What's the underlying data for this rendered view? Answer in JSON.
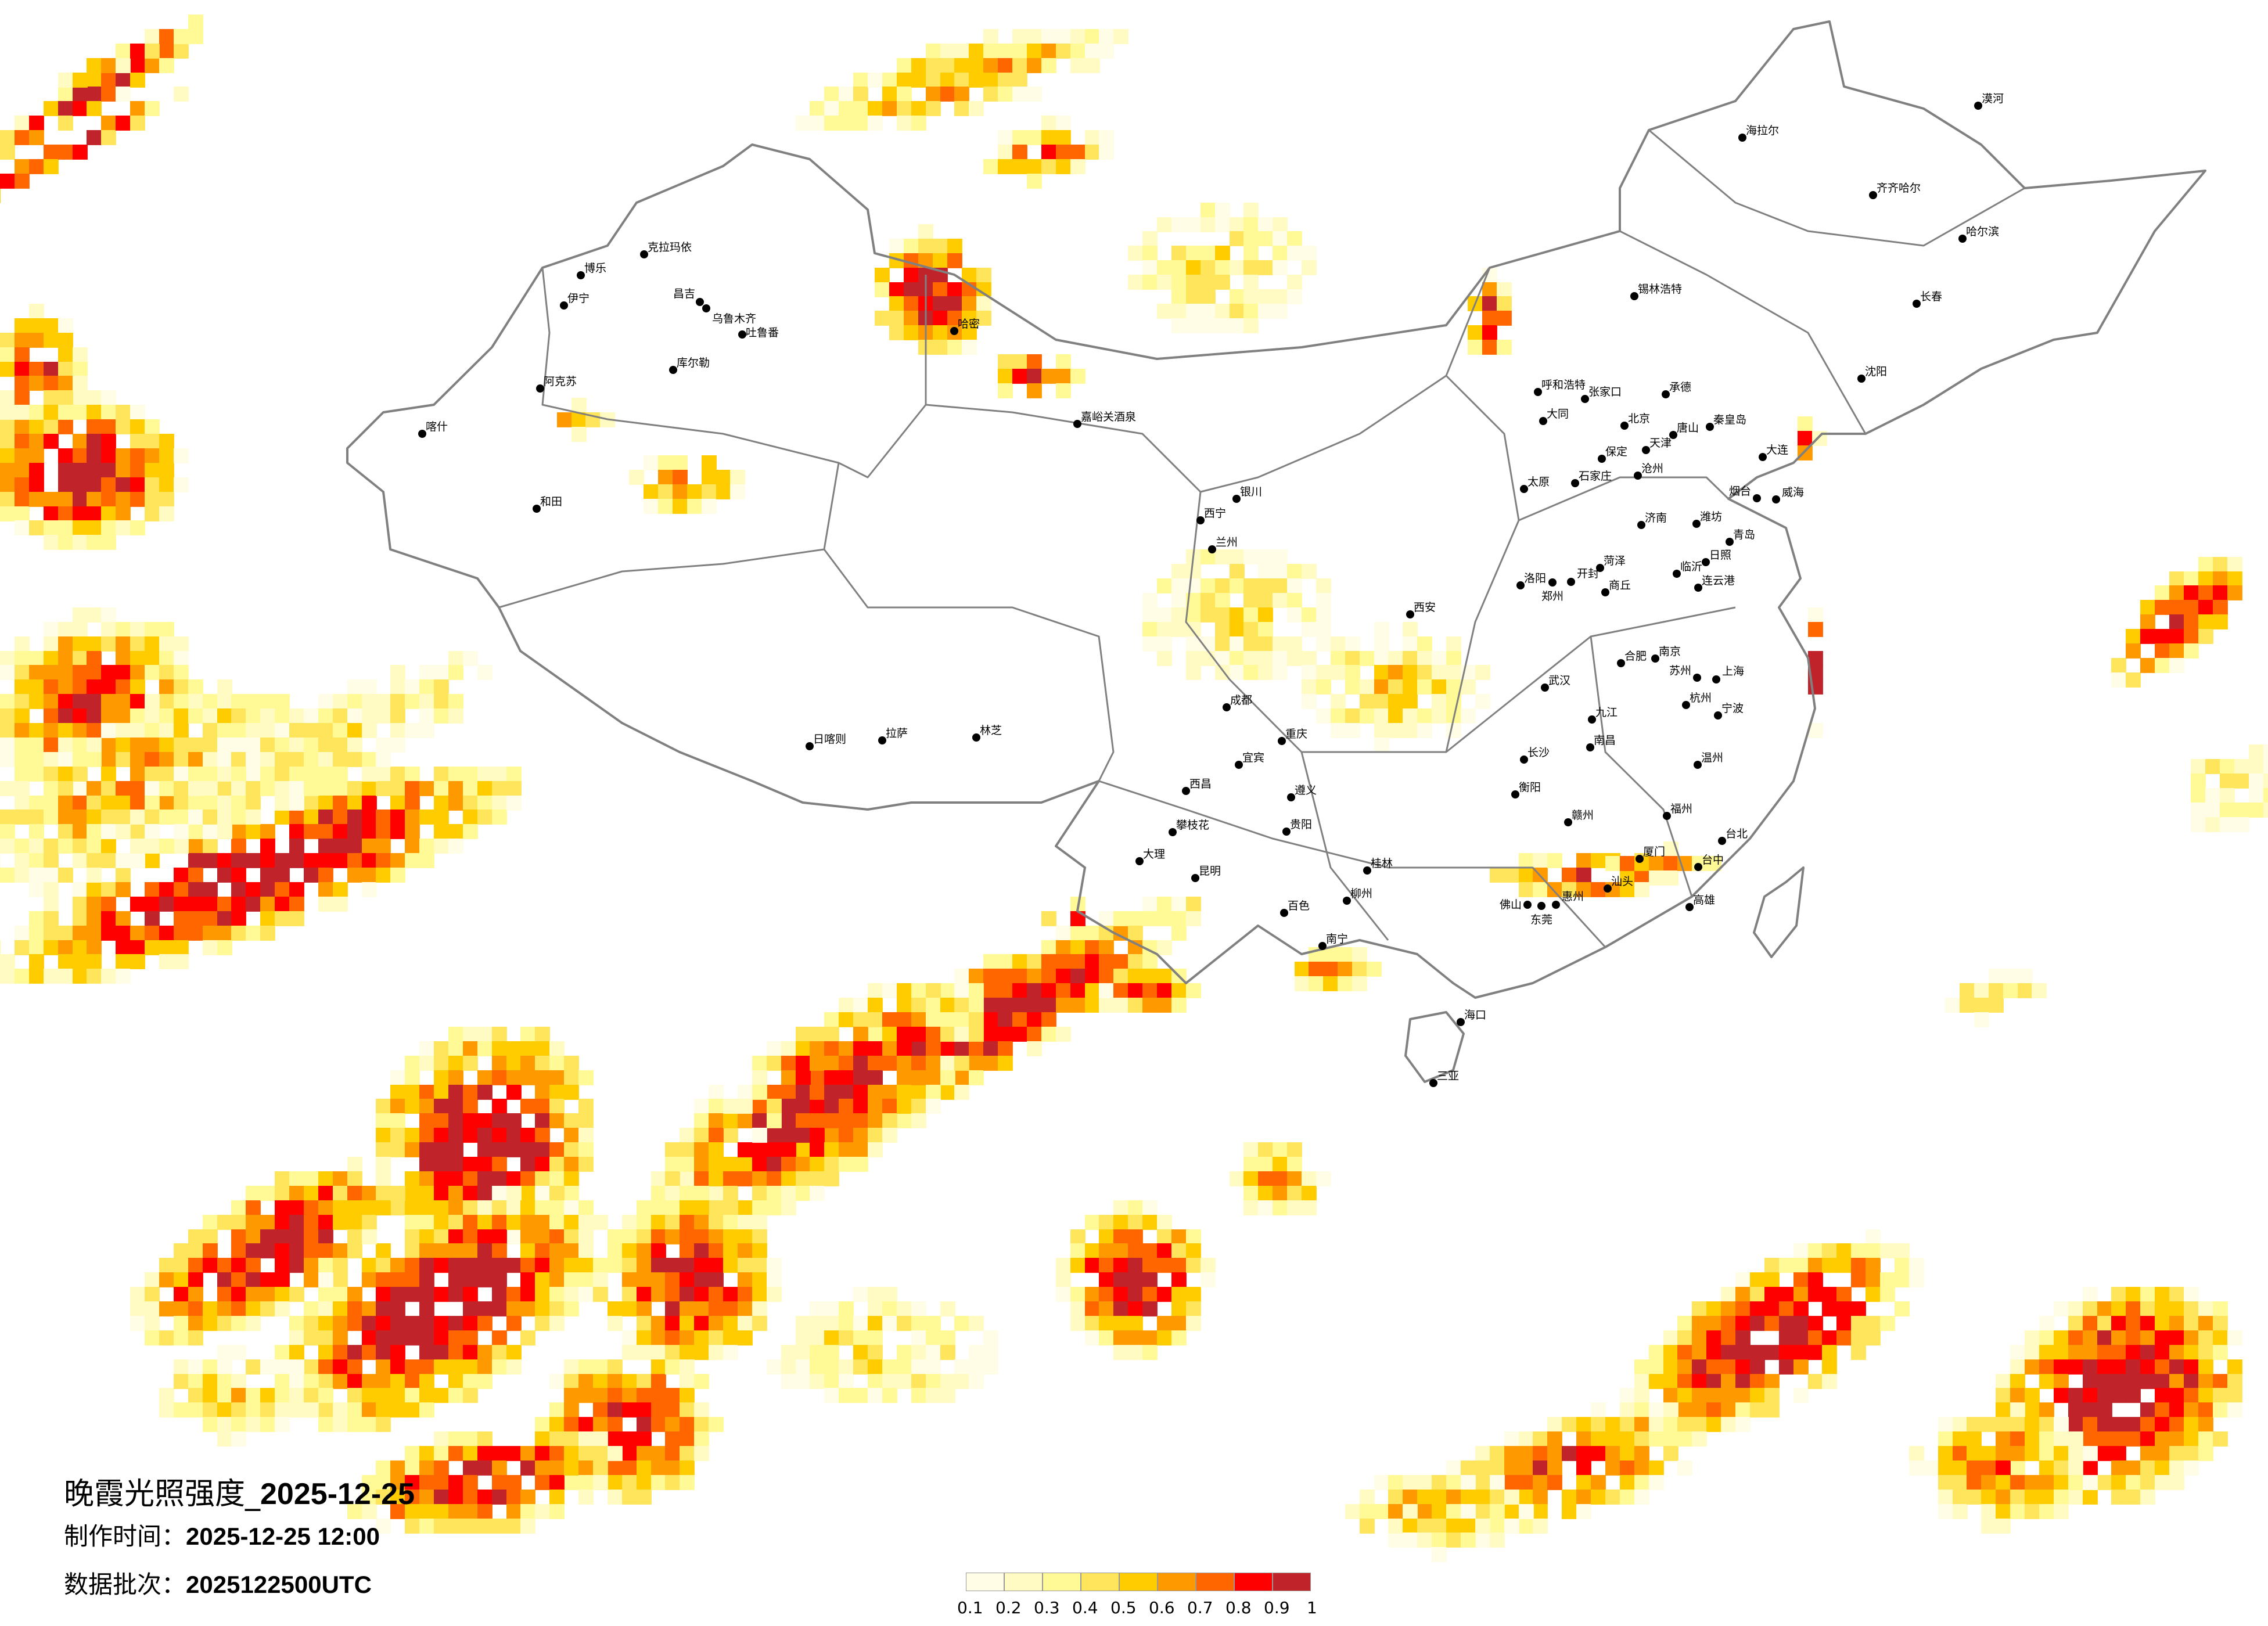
{
  "title": {
    "prefix": "晚霞光照强度_",
    "date": "2025-12-25"
  },
  "production_time": {
    "label": "制作时间：",
    "value": "2025-12-25 12:00"
  },
  "data_batch": {
    "label": "数据批次：",
    "value": "2025122500UTC"
  },
  "legend": {
    "colors": [
      "#fffde6",
      "#fffbc2",
      "#fffa96",
      "#ffe55c",
      "#ffcc00",
      "#ff9900",
      "#ff6600",
      "#ff0000",
      "#c0232a"
    ],
    "labels": [
      "0.1",
      "0.2",
      "0.3",
      "0.4",
      "0.5",
      "0.6",
      "0.7",
      "0.8",
      "0.9",
      "1"
    ]
  },
  "colors": {
    "boundary": "#808080",
    "city_dot": "#000000",
    "background": "#ffffff"
  },
  "cities": [
    "北京",
    "天津",
    "石家庄",
    "太原",
    "济南",
    "青岛",
    "大连",
    "郑州",
    "洛阳",
    "唐山",
    "保定",
    "烟台",
    "威海",
    "秦皇岛",
    "大同",
    "张家口",
    "呼和浩特",
    "承德",
    "沧州",
    "潍坊",
    "临沂",
    "日照",
    "连云港",
    "商丘",
    "开封",
    "菏泽",
    "克拉玛依",
    "博乐",
    "伊宁",
    "昌吉",
    "乌鲁木齐",
    "吐鲁番",
    "库尔勒",
    "阿克苏",
    "喀什",
    "和田",
    "哈密",
    "嘉峪关酒泉",
    "西宁",
    "兰州",
    "银川",
    "西安",
    "拉萨",
    "日喀则",
    "林芝",
    "成都",
    "重庆",
    "昆明",
    "贵阳",
    "南宁",
    "桂林",
    "柳州",
    "大理",
    "西昌",
    "遵义",
    "宜宾",
    "攀枝花",
    "百色",
    "武汉",
    "长沙",
    "南昌",
    "杭州",
    "上海",
    "南京",
    "合肥",
    "福州",
    "厦门",
    "台北",
    "台中",
    "高雄",
    "赣州",
    "佛山",
    "东莞",
    "惠州",
    "汕头",
    "温州",
    "宁波",
    "苏州",
    "衡阳",
    "九江",
    "海口",
    "三亚",
    "沈阳",
    "长春",
    "哈尔滨",
    "齐齐哈尔",
    "海拉尔",
    "锡林浩特",
    "漠河"
  ]
}
